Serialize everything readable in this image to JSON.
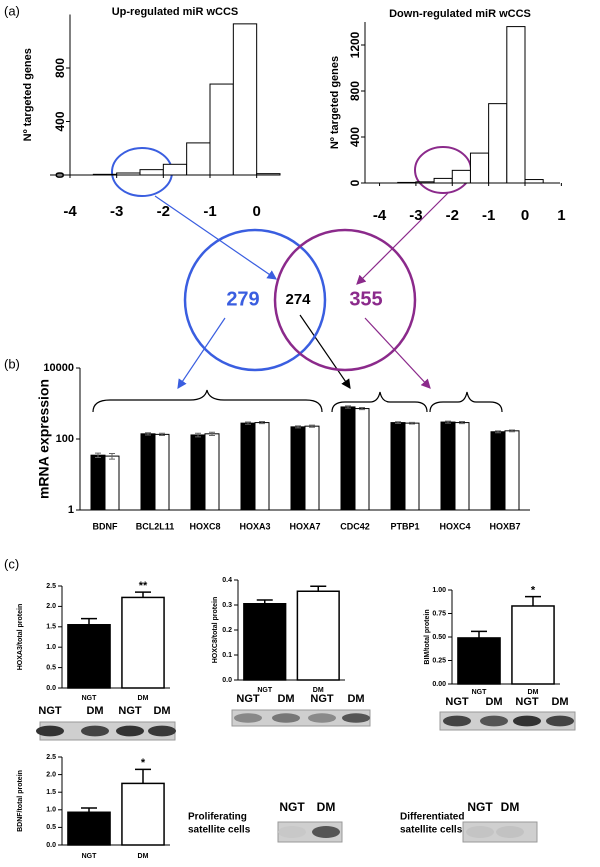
{
  "panel_labels": [
    "(a)",
    "(b)",
    "(c)"
  ],
  "chart_data": [
    {
      "type": "histogram",
      "title": "Up-regulated miR wCCS",
      "y_label": "Nº targeted genes",
      "bins": [
        -3.5,
        -3,
        -2.5,
        -2,
        -1.5,
        -1,
        -0.5,
        0,
        0.5
      ],
      "values": [
        5,
        15,
        40,
        80,
        240,
        680,
        1130,
        10
      ],
      "color": "#ffffff",
      "xlim": [
        -4,
        0.5
      ],
      "xticks": [
        -4,
        -3,
        -2,
        -1,
        0
      ],
      "ylim": [
        0,
        1200
      ],
      "yticks": [
        0,
        400,
        800
      ]
    },
    {
      "type": "histogram",
      "title": "Down-regulated miR wCCS",
      "y_label": "Nº targeted genes",
      "bins": [
        -3.5,
        -3,
        -2.5,
        -2,
        -1.5,
        -1,
        -0.5,
        0,
        0.5
      ],
      "values": [
        5,
        10,
        40,
        110,
        260,
        690,
        1360,
        30
      ],
      "color": "#ffffff",
      "xlim": [
        -4.4,
        1.1
      ],
      "xticks": [
        -4,
        -3,
        -2,
        -1,
        0,
        1
      ],
      "ylim": [
        0,
        1400
      ],
      "yticks": [
        0,
        400,
        800,
        1200
      ]
    },
    {
      "type": "venn",
      "values": [
        279,
        274,
        355
      ],
      "colors": [
        "#3a5ee0",
        "#000000",
        "#8b2a8b"
      ]
    },
    {
      "type": "grouped-bar",
      "y_label": "mRNA expression",
      "log_scale": true,
      "categories": [
        "BDNF",
        "BCL2L11",
        "HOXC8",
        "HOXA3",
        "HOXA7",
        "CDC42",
        "PTBP1",
        "HOXC4",
        "HOXB7"
      ],
      "series": [
        {
          "color": "#000000",
          "values": [
            35,
            140,
            130,
            280,
            220,
            800,
            290,
            300,
            160
          ],
          "errors": [
            5,
            10,
            15,
            20,
            15,
            60,
            15,
            20,
            10
          ]
        },
        {
          "color": "#ffffff",
          "values": [
            33,
            135,
            140,
            290,
            230,
            720,
            280,
            290,
            170
          ],
          "errors": [
            6,
            10,
            15,
            20,
            15,
            50,
            15,
            20,
            10
          ]
        }
      ],
      "ylim": [
        1,
        10000
      ],
      "yticks": [
        1,
        100,
        10000
      ]
    },
    {
      "type": "bar",
      "y_label": "HOXA3/total protein",
      "categories": [
        "NGT",
        "DM"
      ],
      "values": [
        1.55,
        2.22
      ],
      "errors": [
        0.15,
        0.13
      ],
      "colors": [
        "#000000",
        "#ffffff"
      ],
      "value_annotations": [
        null,
        "**"
      ],
      "ylim": [
        0,
        2.5
      ],
      "yticks": [
        {
          "value": 0,
          "label": "0.0"
        },
        0.5,
        {
          "value": 1,
          "label": "1.0"
        },
        1.5,
        {
          "value": 2,
          "label": "2.0"
        },
        2.5
      ]
    },
    {
      "type": "bar",
      "y_label": "HOXC8/total protein",
      "categories": [
        "NGT",
        "DM"
      ],
      "values": [
        0.305,
        0.355
      ],
      "errors": [
        0.015,
        0.02
      ],
      "colors": [
        "#000000",
        "#ffffff"
      ],
      "value_annotations": [
        null,
        null
      ],
      "ylim": [
        0,
        0.4
      ],
      "yticks": [
        {
          "value": 0,
          "label": "0.0"
        },
        0.1,
        0.2,
        0.3,
        0.4
      ]
    },
    {
      "type": "bar",
      "y_label": "BIM/total protein",
      "categories": [
        "NGT",
        "DM"
      ],
      "values": [
        0.49,
        0.83
      ],
      "errors": [
        0.07,
        0.1
      ],
      "colors": [
        "#000000",
        "#ffffff"
      ],
      "value_annotations": [
        null,
        "*"
      ],
      "ylim": [
        0,
        1
      ],
      "yticks": [
        {
          "value": 0,
          "label": "0.00"
        },
        0.25,
        {
          "value": 0.5,
          "label": "0.50"
        },
        0.75,
        {
          "value": 1,
          "label": "1.00"
        }
      ]
    },
    {
      "type": "bar",
      "y_label": "BDNF/total protein",
      "categories": [
        "NGT",
        "DM"
      ],
      "values": [
        0.93,
        1.75
      ],
      "errors": [
        0.12,
        0.4
      ],
      "colors": [
        "#000000",
        "#ffffff"
      ],
      "value_annotations": [
        null,
        "*"
      ],
      "ylim": [
        0,
        2.5
      ],
      "yticks": [
        {
          "value": 0,
          "label": "0.0"
        },
        0.5,
        {
          "value": 1,
          "label": "1.0"
        },
        1.5,
        {
          "value": 2,
          "label": "2.0"
        },
        2.5
      ]
    }
  ],
  "blots": [
    {
      "lanes": [
        "NGT",
        "DM",
        "NGT",
        "DM"
      ]
    },
    {
      "lanes": [
        "NGT",
        "DM",
        "NGT",
        "DM"
      ]
    },
    {
      "lanes": [
        "NGT",
        "DM",
        "NGT",
        "DM"
      ]
    }
  ],
  "satellite": [
    {
      "label": [
        "Proliferating",
        "satellite cells"
      ],
      "lanes": [
        "NGT",
        "DM"
      ]
    },
    {
      "label": [
        "Differentiated",
        "satellite cells"
      ],
      "lanes": [
        "NGT",
        "DM"
      ]
    }
  ]
}
